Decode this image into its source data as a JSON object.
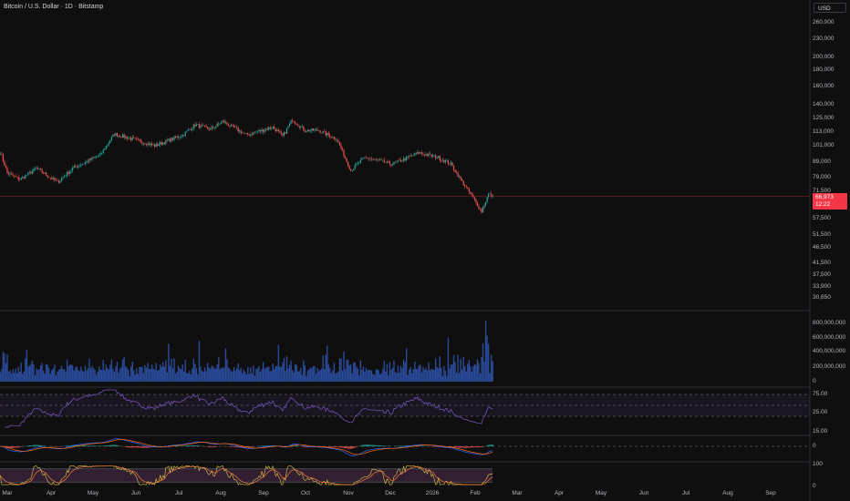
{
  "header": {
    "title": "Bitcoin / U.S. Dollar · 1D · Bitstamp",
    "currency": "USD"
  },
  "price_axis": {
    "labels": [
      "260,000",
      "230,000",
      "200,000",
      "180,000",
      "160,000",
      "140,000",
      "125,000",
      "113,000",
      "101,000",
      "89,000",
      "79,000",
      "71,500",
      "57,500",
      "51,500",
      "46,500",
      "41,500",
      "37,500",
      "33,900",
      "30,650"
    ],
    "scale": "log"
  },
  "last_price": {
    "value": "66,973",
    "countdown": "12:22",
    "color": "#f23645"
  },
  "volume_axis": {
    "labels": [
      "800,000,000",
      "600,000,000",
      "400,000,000",
      "200,000,000",
      "0"
    ]
  },
  "rsi_axis": {
    "labels": [
      "75.00",
      "25.00",
      "15.00"
    ]
  },
  "macd_axis": {
    "labels": [
      "0"
    ]
  },
  "osc_axis": {
    "labels": [
      "100",
      "0"
    ]
  },
  "time_axis": {
    "labels": [
      "Mar",
      "Apr",
      "May",
      "Jun",
      "Jul",
      "Aug",
      "Sep",
      "Oct",
      "Nov",
      "Dec",
      "2026",
      "Feb",
      "Mar",
      "Apr",
      "May",
      "Jun",
      "Jul",
      "Aug",
      "Sep"
    ]
  },
  "colors": {
    "up": "#26a69a",
    "down": "#ef5350",
    "volume": "#2a4a9a",
    "rsi": "#7e57c2",
    "macd": "#2962ff",
    "signal": "#ff6d00",
    "background": "#0f0f0f"
  },
  "chart_data": {
    "type": "candlestick",
    "symbol": "Bitcoin / U.S. Dollar",
    "interval": "1D",
    "approx_close_path": [
      [
        "2025-02-24",
        94500
      ],
      [
        "2025-03-01",
        80200
      ],
      [
        "2025-03-10",
        76300
      ],
      [
        "2025-03-22",
        83200
      ],
      [
        "2025-04-06",
        74600
      ],
      [
        "2025-04-17",
        83200
      ],
      [
        "2025-05-07",
        92500
      ],
      [
        "2025-05-17",
        109000
      ],
      [
        "2025-06-15",
        99300
      ],
      [
        "2025-07-05",
        108000
      ],
      [
        "2025-07-14",
        117000
      ],
      [
        "2025-07-25",
        113000
      ],
      [
        "2025-08-03",
        120000
      ],
      [
        "2025-08-20",
        108000
      ],
      [
        "2025-09-08",
        115000
      ],
      [
        "2025-09-15",
        107000
      ],
      [
        "2025-09-22",
        122000
      ],
      [
        "2025-10-01",
        112000
      ],
      [
        "2025-10-11",
        112000
      ],
      [
        "2025-10-24",
        104500
      ],
      [
        "2025-11-03",
        82000
      ],
      [
        "2025-11-13",
        90500
      ],
      [
        "2025-12-03",
        86000
      ],
      [
        "2025-12-22",
        94000
      ],
      [
        "2026-01-05",
        90500
      ],
      [
        "2026-01-14",
        86000
      ],
      [
        "2026-01-21",
        76300
      ],
      [
        "2026-01-31",
        64800
      ],
      [
        "2026-02-05",
        59500
      ],
      [
        "2026-02-10",
        68000
      ],
      [
        "2026-02-13",
        66973
      ]
    ],
    "volume_peak": 840000000,
    "rsi_bands": [
      75,
      25
    ],
    "osc_range": [
      0,
      100
    ]
  }
}
